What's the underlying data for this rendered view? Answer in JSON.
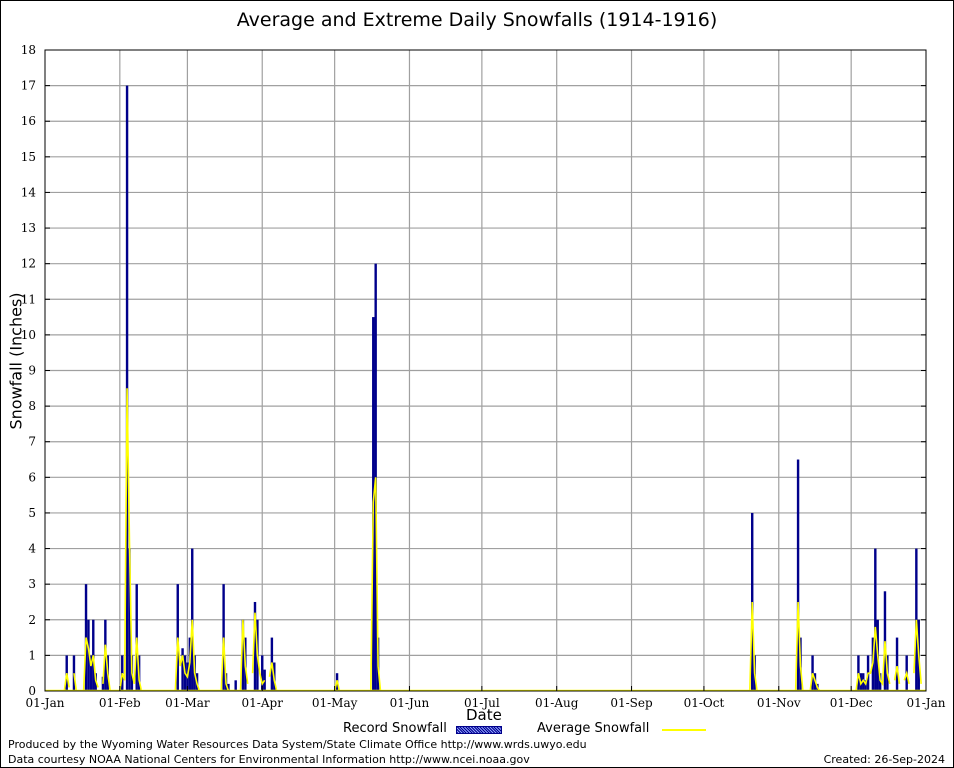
{
  "chart_data": {
    "type": "bar",
    "title": "Average and Extreme Daily Snowfalls (1914-1916)",
    "xlabel": "Date",
    "ylabel": "Snowfall (Inches)",
    "ylim": [
      0,
      18
    ],
    "xlim_days": [
      0,
      365
    ],
    "grid": true,
    "y_ticks": [
      "0",
      "1",
      "2",
      "3",
      "4",
      "5",
      "6",
      "7",
      "8",
      "9",
      "10",
      "11",
      "12",
      "13",
      "14",
      "15",
      "16",
      "17",
      "18"
    ],
    "x_ticks": [
      {
        "label": "01-Jan",
        "day": 0
      },
      {
        "label": "01-Feb",
        "day": 31
      },
      {
        "label": "01-Mar",
        "day": 59
      },
      {
        "label": "01-Apr",
        "day": 90
      },
      {
        "label": "01-May",
        "day": 120
      },
      {
        "label": "01-Jun",
        "day": 151
      },
      {
        "label": "01-Jul",
        "day": 181
      },
      {
        "label": "01-Aug",
        "day": 212
      },
      {
        "label": "01-Sep",
        "day": 243
      },
      {
        "label": "01-Oct",
        "day": 273
      },
      {
        "label": "01-Nov",
        "day": 304
      },
      {
        "label": "01-Dec",
        "day": 334
      },
      {
        "label": "01-Jan",
        "day": 365
      }
    ],
    "legend": [
      "Record Snowfall",
      "Average Snowfall"
    ],
    "legend_position": "bottom",
    "colors": {
      "record": "#00008b",
      "average": "#ffff00",
      "grid": "#a0a0a0"
    },
    "series": [
      {
        "name": "Record Snowfall",
        "points": [
          [
            9,
            1
          ],
          [
            12,
            1
          ],
          [
            17,
            3
          ],
          [
            18,
            2
          ],
          [
            19,
            1
          ],
          [
            20,
            2
          ],
          [
            21,
            0.5
          ],
          [
            24,
            0.4
          ],
          [
            25,
            2
          ],
          [
            26,
            1
          ],
          [
            32,
            1
          ],
          [
            34,
            17
          ],
          [
            35,
            4
          ],
          [
            36,
            1
          ],
          [
            38,
            3
          ],
          [
            39,
            1
          ],
          [
            55,
            3
          ],
          [
            57,
            1.2
          ],
          [
            58,
            1
          ],
          [
            59,
            0.8
          ],
          [
            60,
            1.5
          ],
          [
            61,
            4
          ],
          [
            62,
            1
          ],
          [
            63,
            0.5
          ],
          [
            74,
            3
          ],
          [
            75,
            0.5
          ],
          [
            76,
            0.2
          ],
          [
            79,
            0.3
          ],
          [
            82,
            2
          ],
          [
            83,
            1.5
          ],
          [
            87,
            2.5
          ],
          [
            88,
            2
          ],
          [
            90,
            1
          ],
          [
            91,
            0.6
          ],
          [
            94,
            1.5
          ],
          [
            95,
            0.8
          ],
          [
            121,
            0.5
          ],
          [
            136,
            10.5
          ],
          [
            137,
            12
          ],
          [
            138,
            1.5
          ],
          [
            293,
            5
          ],
          [
            294,
            1
          ],
          [
            312,
            6.5
          ],
          [
            313,
            1.5
          ],
          [
            318,
            1
          ],
          [
            319,
            0.5
          ],
          [
            320,
            0.2
          ],
          [
            337,
            1
          ],
          [
            338,
            0.5
          ],
          [
            339,
            0.5
          ],
          [
            340,
            0.3
          ],
          [
            341,
            1
          ],
          [
            343,
            1.5
          ],
          [
            344,
            4
          ],
          [
            345,
            2
          ],
          [
            346,
            0.5
          ],
          [
            348,
            2.8
          ],
          [
            349,
            1
          ],
          [
            353,
            1.5
          ],
          [
            357,
            1
          ],
          [
            361,
            4
          ],
          [
            362,
            2
          ]
        ]
      },
      {
        "name": "Average Snowfall",
        "points": [
          [
            8,
            0
          ],
          [
            9,
            0.5
          ],
          [
            10,
            0.1
          ],
          [
            12,
            0.5
          ],
          [
            13,
            0
          ],
          [
            16,
            0
          ],
          [
            17,
            1.5
          ],
          [
            18,
            1.2
          ],
          [
            19,
            0.7
          ],
          [
            20,
            1
          ],
          [
            21,
            0.3
          ],
          [
            22,
            0.1
          ],
          [
            24,
            0.2
          ],
          [
            25,
            1.3
          ],
          [
            26,
            0.5
          ],
          [
            27,
            0
          ],
          [
            31,
            0
          ],
          [
            32,
            0.5
          ],
          [
            33,
            0.3
          ],
          [
            34,
            8.5
          ],
          [
            35,
            4.2
          ],
          [
            36,
            0.5
          ],
          [
            37,
            0.2
          ],
          [
            38,
            1.5
          ],
          [
            39,
            0.3
          ],
          [
            40,
            0
          ],
          [
            54,
            0
          ],
          [
            55,
            1.5
          ],
          [
            56,
            0.7
          ],
          [
            57,
            1
          ],
          [
            58,
            0.5
          ],
          [
            59,
            0.4
          ],
          [
            60,
            0.8
          ],
          [
            61,
            2
          ],
          [
            62,
            0.5
          ],
          [
            63,
            0.2
          ],
          [
            64,
            0
          ],
          [
            73,
            0
          ],
          [
            74,
            1.5
          ],
          [
            75,
            0.2
          ],
          [
            76,
            0
          ],
          [
            81,
            0
          ],
          [
            82,
            2
          ],
          [
            83,
            0.7
          ],
          [
            84,
            0.2
          ],
          [
            86,
            0.5
          ],
          [
            87,
            2.2
          ],
          [
            88,
            1
          ],
          [
            89,
            0.5
          ],
          [
            90,
            0.2
          ],
          [
            91,
            0.3
          ],
          [
            93,
            0.4
          ],
          [
            94,
            0.8
          ],
          [
            95,
            0.3
          ],
          [
            96,
            0
          ],
          [
            120,
            0
          ],
          [
            121,
            0.3
          ],
          [
            122,
            0
          ],
          [
            135,
            0
          ],
          [
            136,
            5.3
          ],
          [
            137,
            6
          ],
          [
            138,
            0.7
          ],
          [
            139,
            0
          ],
          [
            292,
            0
          ],
          [
            293,
            2.5
          ],
          [
            294,
            0.5
          ],
          [
            295,
            0
          ],
          [
            311,
            0
          ],
          [
            312,
            2.5
          ],
          [
            313,
            0.7
          ],
          [
            314,
            0
          ],
          [
            317,
            0
          ],
          [
            318,
            0.5
          ],
          [
            319,
            0.3
          ],
          [
            320,
            0.1
          ],
          [
            321,
            0
          ],
          [
            336,
            0
          ],
          [
            337,
            0.5
          ],
          [
            338,
            0.2
          ],
          [
            339,
            0.3
          ],
          [
            340,
            0.2
          ],
          [
            341,
            0.5
          ],
          [
            342,
            0.5
          ],
          [
            343,
            0.8
          ],
          [
            344,
            1.8
          ],
          [
            345,
            1
          ],
          [
            346,
            0.3
          ],
          [
            347,
            0.2
          ],
          [
            348,
            1.4
          ],
          [
            349,
            0.5
          ],
          [
            350,
            0.2
          ],
          [
            352,
            0.3
          ],
          [
            353,
            0.7
          ],
          [
            354,
            0.2
          ],
          [
            356,
            0.3
          ],
          [
            357,
            0.5
          ],
          [
            358,
            0.2
          ],
          [
            360,
            0.5
          ],
          [
            361,
            2
          ],
          [
            362,
            1
          ],
          [
            363,
            0.2
          ],
          [
            365,
            0
          ]
        ]
      }
    ]
  },
  "footer": {
    "produced_by": "Produced by the Wyoming Water Resources Data System/State Climate Office http://www.wrds.uwyo.edu",
    "courtesy": "Data courtesy NOAA National Centers for Environmental Information http://www.ncei.noaa.gov",
    "created": "Created:  26-Sep-2024"
  }
}
